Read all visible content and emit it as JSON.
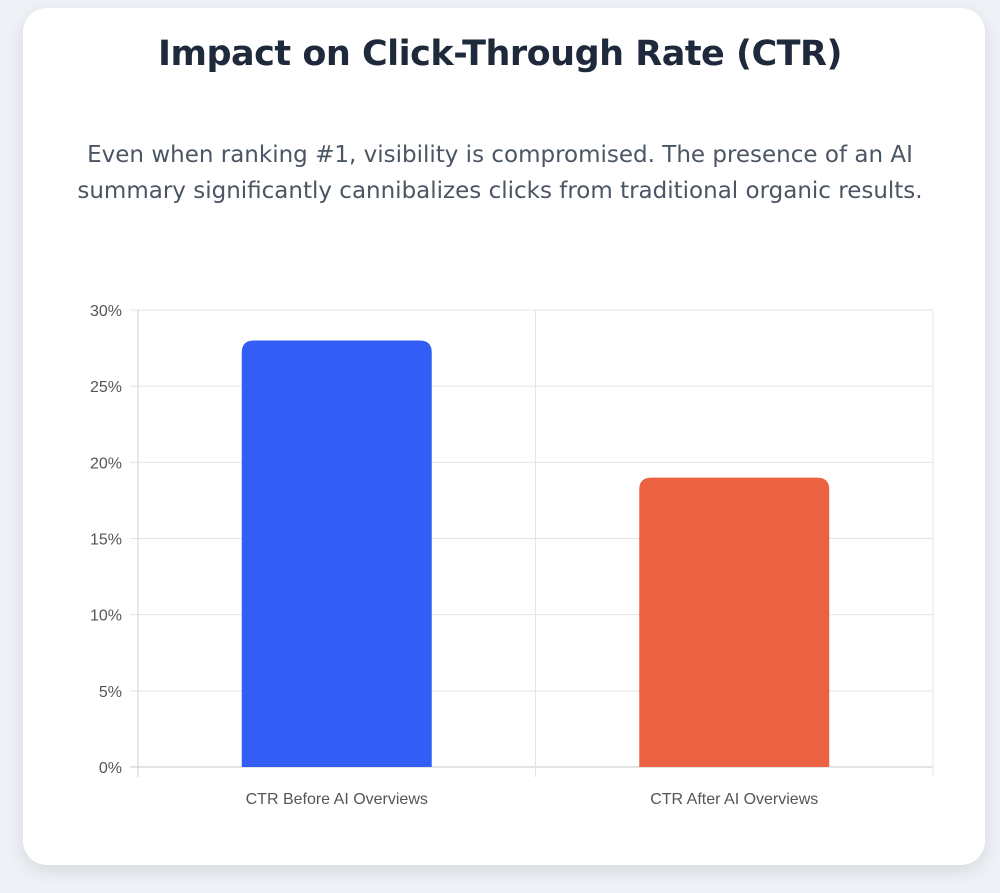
{
  "chart_data": {
    "type": "bar",
    "title": "Impact on Click-Through Rate (CTR)",
    "subtitle": "Even when ranking #1, visibility is compromised. The presence of an AI summary significantly cannibalizes clicks from traditional organic results.",
    "categories": [
      "CTR Before AI Overviews",
      "CTR After AI Overviews"
    ],
    "values": [
      28,
      19
    ],
    "colors": [
      "#335ef5",
      "#eb6243"
    ],
    "ylim": [
      0,
      30
    ],
    "yticks": [
      "0%",
      "5%",
      "10%",
      "15%",
      "20%",
      "25%",
      "30%"
    ],
    "ytick_values": [
      0,
      5,
      10,
      15,
      20,
      25,
      30
    ],
    "grid": true,
    "legend": "none"
  }
}
